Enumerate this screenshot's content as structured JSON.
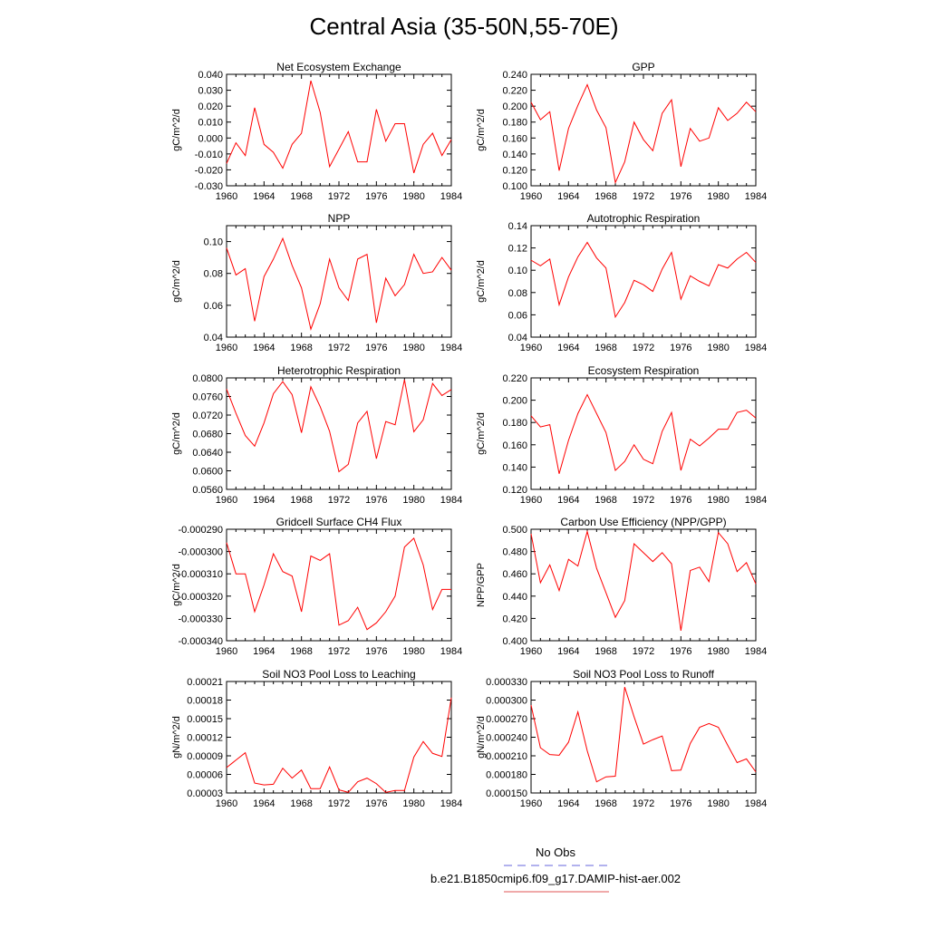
{
  "figure": {
    "title": "Central Asia (35-50N,55-70E)"
  },
  "legend": {
    "items": [
      {
        "label": "No Obs",
        "color": "#6666dd",
        "style": "dashed"
      },
      {
        "label": "b.e21.B1850cmip6.f09_g17.DAMIP-hist-aer.002",
        "color": "#e05555",
        "style": "solid"
      }
    ]
  },
  "chart_data": [
    {
      "type": "line",
      "title": "Net Ecosystem Exchange",
      "ylabel": "gC/m^2/d",
      "xlim": [
        1960,
        1984
      ],
      "xticks": [
        1960,
        1964,
        1968,
        1972,
        1976,
        1980,
        1984
      ],
      "ylim": [
        -0.03,
        0.04
      ],
      "yticks": [
        "0.040",
        "0.030",
        "0.020",
        "0.010",
        "0.000",
        "-0.010",
        "-0.020",
        "-0.030"
      ],
      "yticks_values": [
        0.04,
        0.03,
        0.02,
        0.01,
        0.0,
        -0.01,
        -0.02,
        -0.03
      ],
      "x": [
        1960,
        1961,
        1962,
        1963,
        1964,
        1965,
        1966,
        1967,
        1968,
        1969,
        1970,
        1971,
        1972,
        1973,
        1974,
        1975,
        1976,
        1977,
        1978,
        1979,
        1980,
        1981,
        1982,
        1983,
        1984
      ],
      "series": [
        {
          "color": "#ff0000",
          "values": [
            -0.016,
            -0.003,
            -0.011,
            0.019,
            -0.004,
            -0.009,
            -0.019,
            -0.004,
            0.003,
            0.036,
            0.016,
            -0.018,
            -0.007,
            0.004,
            -0.015,
            -0.015,
            0.018,
            -0.002,
            0.009,
            0.009,
            -0.022,
            -0.004,
            0.003,
            -0.011,
            -0.001
          ]
        }
      ]
    },
    {
      "type": "line",
      "title": "GPP",
      "ylabel": "gC/m^2/d",
      "xlim": [
        1960,
        1984
      ],
      "xticks": [
        1960,
        1964,
        1968,
        1972,
        1976,
        1980,
        1984
      ],
      "ylim": [
        0.1,
        0.24
      ],
      "yticks": [
        "0.240",
        "0.220",
        "0.200",
        "0.180",
        "0.160",
        "0.140",
        "0.120",
        "0.100"
      ],
      "yticks_values": [
        0.24,
        0.22,
        0.2,
        0.18,
        0.16,
        0.14,
        0.12,
        0.1
      ],
      "x": [
        1960,
        1961,
        1962,
        1963,
        1964,
        1965,
        1966,
        1967,
        1968,
        1969,
        1970,
        1971,
        1972,
        1973,
        1974,
        1975,
        1976,
        1977,
        1978,
        1979,
        1980,
        1981,
        1982,
        1983,
        1984
      ],
      "series": [
        {
          "color": "#ff0000",
          "values": [
            0.205,
            0.183,
            0.193,
            0.119,
            0.172,
            0.201,
            0.227,
            0.195,
            0.173,
            0.104,
            0.13,
            0.18,
            0.158,
            0.144,
            0.191,
            0.208,
            0.124,
            0.172,
            0.156,
            0.16,
            0.198,
            0.182,
            0.191,
            0.205,
            0.193
          ]
        }
      ]
    },
    {
      "type": "line",
      "title": "NPP",
      "ylabel": "gC/m^2/d",
      "xlim": [
        1960,
        1984
      ],
      "xticks": [
        1960,
        1964,
        1968,
        1972,
        1976,
        1980,
        1984
      ],
      "ylim": [
        0.04,
        0.11
      ],
      "yticks": [
        "0.10",
        "0.08",
        "0.06",
        "0.04"
      ],
      "yticks_values": [
        0.1,
        0.08,
        0.06,
        0.04
      ],
      "x": [
        1960,
        1961,
        1962,
        1963,
        1964,
        1965,
        1966,
        1967,
        1968,
        1969,
        1970,
        1971,
        1972,
        1973,
        1974,
        1975,
        1976,
        1977,
        1978,
        1979,
        1980,
        1981,
        1982,
        1983,
        1984
      ],
      "series": [
        {
          "color": "#ff0000",
          "values": [
            0.096,
            0.079,
            0.083,
            0.05,
            0.078,
            0.089,
            0.102,
            0.085,
            0.071,
            0.045,
            0.061,
            0.089,
            0.071,
            0.063,
            0.089,
            0.092,
            0.049,
            0.077,
            0.066,
            0.073,
            0.092,
            0.08,
            0.081,
            0.09,
            0.082
          ]
        }
      ]
    },
    {
      "type": "line",
      "title": "Autotrophic Respiration",
      "ylabel": "gC/m^2/d",
      "xlim": [
        1960,
        1984
      ],
      "xticks": [
        1960,
        1964,
        1968,
        1972,
        1976,
        1980,
        1984
      ],
      "ylim": [
        0.04,
        0.14
      ],
      "yticks": [
        "0.14",
        "0.12",
        "0.10",
        "0.08",
        "0.06",
        "0.04"
      ],
      "yticks_values": [
        0.14,
        0.12,
        0.1,
        0.08,
        0.06,
        0.04
      ],
      "x": [
        1960,
        1961,
        1962,
        1963,
        1964,
        1965,
        1966,
        1967,
        1968,
        1969,
        1970,
        1971,
        1972,
        1973,
        1974,
        1975,
        1976,
        1977,
        1978,
        1979,
        1980,
        1981,
        1982,
        1983,
        1984
      ],
      "series": [
        {
          "color": "#ff0000",
          "values": [
            0.109,
            0.104,
            0.11,
            0.069,
            0.094,
            0.112,
            0.125,
            0.111,
            0.102,
            0.058,
            0.071,
            0.091,
            0.087,
            0.081,
            0.101,
            0.116,
            0.074,
            0.095,
            0.09,
            0.086,
            0.105,
            0.102,
            0.11,
            0.116,
            0.107
          ]
        }
      ]
    },
    {
      "type": "line",
      "title": "Heterotrophic Respiration",
      "ylabel": "gC/m^2/d",
      "xlim": [
        1960,
        1984
      ],
      "xticks": [
        1960,
        1964,
        1968,
        1972,
        1976,
        1980,
        1984
      ],
      "ylim": [
        0.056,
        0.08
      ],
      "yticks": [
        "0.0800",
        "0.0760",
        "0.0720",
        "0.0680",
        "0.0640",
        "0.0600",
        "0.0560"
      ],
      "yticks_values": [
        0.08,
        0.076,
        0.072,
        0.068,
        0.064,
        0.06,
        0.056
      ],
      "x": [
        1960,
        1961,
        1962,
        1963,
        1964,
        1965,
        1966,
        1967,
        1968,
        1969,
        1970,
        1971,
        1972,
        1973,
        1974,
        1975,
        1976,
        1977,
        1978,
        1979,
        1980,
        1981,
        1982,
        1983,
        1984
      ],
      "series": [
        {
          "color": "#ff0000",
          "values": [
            0.0776,
            0.0724,
            0.0676,
            0.0653,
            0.0703,
            0.0766,
            0.0792,
            0.0764,
            0.0682,
            0.0781,
            0.0738,
            0.0685,
            0.0598,
            0.0614,
            0.0703,
            0.0728,
            0.0626,
            0.0706,
            0.0699,
            0.0796,
            0.0684,
            0.071,
            0.0788,
            0.0762,
            0.0775
          ]
        }
      ]
    },
    {
      "type": "line",
      "title": "Ecosystem Respiration",
      "ylabel": "gC/m^2/d",
      "xlim": [
        1960,
        1984
      ],
      "xticks": [
        1960,
        1964,
        1968,
        1972,
        1976,
        1980,
        1984
      ],
      "ylim": [
        0.12,
        0.22
      ],
      "yticks": [
        "0.220",
        "0.200",
        "0.180",
        "0.160",
        "0.140",
        "0.120"
      ],
      "yticks_values": [
        0.22,
        0.2,
        0.18,
        0.16,
        0.14,
        0.12
      ],
      "x": [
        1960,
        1961,
        1962,
        1963,
        1964,
        1965,
        1966,
        1967,
        1968,
        1969,
        1970,
        1971,
        1972,
        1973,
        1974,
        1975,
        1976,
        1977,
        1978,
        1979,
        1980,
        1981,
        1982,
        1983,
        1984
      ],
      "series": [
        {
          "color": "#ff0000",
          "values": [
            0.186,
            0.176,
            0.178,
            0.134,
            0.164,
            0.188,
            0.205,
            0.188,
            0.171,
            0.137,
            0.145,
            0.16,
            0.147,
            0.143,
            0.172,
            0.189,
            0.137,
            0.165,
            0.159,
            0.166,
            0.174,
            0.174,
            0.189,
            0.191,
            0.184
          ]
        }
      ]
    },
    {
      "type": "line",
      "title": "Gridcell Surface CH4 Flux",
      "ylabel": "gC/m^2/d",
      "xlim": [
        1960,
        1984
      ],
      "xticks": [
        1960,
        1964,
        1968,
        1972,
        1976,
        1980,
        1984
      ],
      "ylim": [
        -0.00034,
        -0.00029
      ],
      "yticks": [
        "-0.000290",
        "-0.000300",
        "-0.000310",
        "-0.000320",
        "-0.000330",
        "-0.000340"
      ],
      "yticks_values": [
        -0.00029,
        -0.0003,
        -0.00031,
        -0.00032,
        -0.00033,
        -0.00034
      ],
      "x": [
        1960,
        1961,
        1962,
        1963,
        1964,
        1965,
        1966,
        1967,
        1968,
        1969,
        1970,
        1971,
        1972,
        1973,
        1974,
        1975,
        1976,
        1977,
        1978,
        1979,
        1980,
        1981,
        1982,
        1983,
        1984
      ],
      "series": [
        {
          "color": "#ff0000",
          "values": [
            -0.000296,
            -0.00031,
            -0.00031,
            -0.000327,
            -0.000315,
            -0.000301,
            -0.000309,
            -0.000311,
            -0.000327,
            -0.000302,
            -0.000304,
            -0.000301,
            -0.000333,
            -0.000331,
            -0.000325,
            -0.000335,
            -0.000332,
            -0.000327,
            -0.00032,
            -0.000298,
            -0.000294,
            -0.000306,
            -0.000326,
            -0.000317,
            -0.000317
          ]
        }
      ]
    },
    {
      "type": "line",
      "title": "Carbon Use Efficiency (NPP/GPP)",
      "ylabel": "NPP/GPP",
      "xlim": [
        1960,
        1984
      ],
      "xticks": [
        1960,
        1964,
        1968,
        1972,
        1976,
        1980,
        1984
      ],
      "ylim": [
        0.4,
        0.5
      ],
      "yticks": [
        "0.500",
        "0.480",
        "0.460",
        "0.440",
        "0.420",
        "0.400"
      ],
      "yticks_values": [
        0.5,
        0.48,
        0.46,
        0.44,
        0.42,
        0.4
      ],
      "x": [
        1960,
        1961,
        1962,
        1963,
        1964,
        1965,
        1966,
        1967,
        1968,
        1969,
        1970,
        1971,
        1972,
        1973,
        1974,
        1975,
        1976,
        1977,
        1978,
        1979,
        1980,
        1981,
        1982,
        1983,
        1984
      ],
      "series": [
        {
          "color": "#ff0000",
          "values": [
            0.496,
            0.452,
            0.468,
            0.445,
            0.473,
            0.467,
            0.498,
            0.465,
            0.443,
            0.421,
            0.436,
            0.487,
            0.479,
            0.471,
            0.479,
            0.469,
            0.409,
            0.463,
            0.466,
            0.453,
            0.497,
            0.487,
            0.462,
            0.47,
            0.451
          ]
        }
      ]
    },
    {
      "type": "line",
      "title": "Soil NO3 Pool Loss to Leaching",
      "ylabel": "gN/m^2/d",
      "xlim": [
        1960,
        1984
      ],
      "xticks": [
        1960,
        1964,
        1968,
        1972,
        1976,
        1980,
        1984
      ],
      "ylim": [
        3e-05,
        0.00021
      ],
      "yticks": [
        "0.00021",
        "0.00018",
        "0.00015",
        "0.00012",
        "0.00009",
        "0.00006",
        "0.00003"
      ],
      "yticks_values": [
        0.00021,
        0.00018,
        0.00015,
        0.00012,
        9e-05,
        6e-05,
        3e-05
      ],
      "x": [
        1960,
        1961,
        1962,
        1963,
        1964,
        1965,
        1966,
        1967,
        1968,
        1969,
        1970,
        1971,
        1972,
        1973,
        1974,
        1975,
        1976,
        1977,
        1978,
        1979,
        1980,
        1981,
        1982,
        1983,
        1984
      ],
      "series": [
        {
          "color": "#ff0000",
          "values": [
            7.1e-05,
            8.3e-05,
            9.5e-05,
            4.6e-05,
            4.3e-05,
            4.4e-05,
            7e-05,
            5.4e-05,
            6.7e-05,
            3.7e-05,
            3.7e-05,
            7.2e-05,
            3.5e-05,
            3.1e-05,
            4.8e-05,
            5.4e-05,
            4.5e-05,
            3.1e-05,
            3.4e-05,
            3.4e-05,
            8.8e-05,
            0.000113,
            9.4e-05,
            8.9e-05,
            0.000184
          ]
        }
      ]
    },
    {
      "type": "line",
      "title": "Soil NO3 Pool Loss to Runoff",
      "ylabel": "gN/m^2/d",
      "xlim": [
        1960,
        1984
      ],
      "xticks": [
        1960,
        1964,
        1968,
        1972,
        1976,
        1980,
        1984
      ],
      "ylim": [
        0.00015,
        0.00033
      ],
      "yticks": [
        "0.000330",
        "0.000300",
        "0.000270",
        "0.000240",
        "0.000210",
        "0.000180",
        "0.000150"
      ],
      "yticks_values": [
        0.00033,
        0.0003,
        0.00027,
        0.00024,
        0.00021,
        0.00018,
        0.00015
      ],
      "x": [
        1960,
        1961,
        1962,
        1963,
        1964,
        1965,
        1966,
        1967,
        1968,
        1969,
        1970,
        1971,
        1972,
        1973,
        1974,
        1975,
        1976,
        1977,
        1978,
        1979,
        1980,
        1981,
        1982,
        1983,
        1984
      ],
      "series": [
        {
          "color": "#ff0000",
          "values": [
            0.000292,
            0.000223,
            0.000212,
            0.000211,
            0.000232,
            0.000281,
            0.000218,
            0.000168,
            0.000176,
            0.000177,
            0.000321,
            0.000273,
            0.000229,
            0.000236,
            0.000242,
            0.000186,
            0.000187,
            0.00023,
            0.000256,
            0.000262,
            0.000256,
            0.000227,
            0.000199,
            0.000205,
            0.000184
          ]
        }
      ]
    }
  ]
}
